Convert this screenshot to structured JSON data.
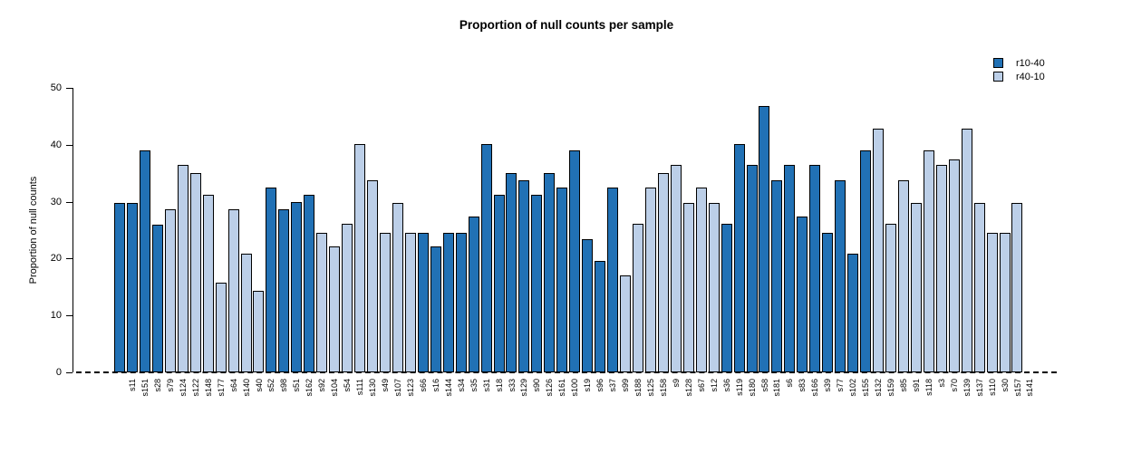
{
  "title": "Proportion of null counts per sample",
  "chart_data": {
    "type": "bar",
    "title": "Proportion of null counts per sample",
    "xlabel": "",
    "ylabel": "Proportion of null counts",
    "ylim": [
      0,
      50
    ],
    "yticks": [
      0,
      10,
      20,
      30,
      40,
      50
    ],
    "zero_line_style": "dashed",
    "legend_position": "top-right",
    "grid": false,
    "legend": [
      {
        "name": "r10-40",
        "color": "#2171B5"
      },
      {
        "name": "r40-10",
        "color": "#BCCFE8"
      }
    ],
    "samples": [
      {
        "label": "s11",
        "value": 29.8,
        "series": "r10-40"
      },
      {
        "label": "s151",
        "value": 29.8,
        "series": "r10-40"
      },
      {
        "label": "s28",
        "value": 39.0,
        "series": "r10-40"
      },
      {
        "label": "s79",
        "value": 26.0,
        "series": "r10-40"
      },
      {
        "label": "s124",
        "value": 28.6,
        "series": "r40-10"
      },
      {
        "label": "s122",
        "value": 36.4,
        "series": "r40-10"
      },
      {
        "label": "s148",
        "value": 35.0,
        "series": "r40-10"
      },
      {
        "label": "s177",
        "value": 31.2,
        "series": "r40-10"
      },
      {
        "label": "s64",
        "value": 15.7,
        "series": "r40-10"
      },
      {
        "label": "s140",
        "value": 28.6,
        "series": "r40-10"
      },
      {
        "label": "s40",
        "value": 20.8,
        "series": "r40-10"
      },
      {
        "label": "s52",
        "value": 14.4,
        "series": "r40-10"
      },
      {
        "label": "s98",
        "value": 32.5,
        "series": "r10-40"
      },
      {
        "label": "s51",
        "value": 28.6,
        "series": "r10-40"
      },
      {
        "label": "s162",
        "value": 30.0,
        "series": "r10-40"
      },
      {
        "label": "s92",
        "value": 31.2,
        "series": "r10-40"
      },
      {
        "label": "s104",
        "value": 24.6,
        "series": "r40-10"
      },
      {
        "label": "s54",
        "value": 22.1,
        "series": "r40-10"
      },
      {
        "label": "s111",
        "value": 26.1,
        "series": "r40-10"
      },
      {
        "label": "s130",
        "value": 40.2,
        "series": "r40-10"
      },
      {
        "label": "s49",
        "value": 33.8,
        "series": "r40-10"
      },
      {
        "label": "s107",
        "value": 24.6,
        "series": "r40-10"
      },
      {
        "label": "s123",
        "value": 29.8,
        "series": "r40-10"
      },
      {
        "label": "s66",
        "value": 24.6,
        "series": "r40-10"
      },
      {
        "label": "s16",
        "value": 24.6,
        "series": "r10-40"
      },
      {
        "label": "s144",
        "value": 22.1,
        "series": "r10-40"
      },
      {
        "label": "s34",
        "value": 24.6,
        "series": "r10-40"
      },
      {
        "label": "s35",
        "value": 24.6,
        "series": "r10-40"
      },
      {
        "label": "s31",
        "value": 27.4,
        "series": "r10-40"
      },
      {
        "label": "s18",
        "value": 40.2,
        "series": "r10-40"
      },
      {
        "label": "s33",
        "value": 31.2,
        "series": "r10-40"
      },
      {
        "label": "s129",
        "value": 35.0,
        "series": "r10-40"
      },
      {
        "label": "s90",
        "value": 33.8,
        "series": "r10-40"
      },
      {
        "label": "s126",
        "value": 31.2,
        "series": "r10-40"
      },
      {
        "label": "s161",
        "value": 35.0,
        "series": "r10-40"
      },
      {
        "label": "s100",
        "value": 32.5,
        "series": "r10-40"
      },
      {
        "label": "s19",
        "value": 39.0,
        "series": "r10-40"
      },
      {
        "label": "s96",
        "value": 23.4,
        "series": "r10-40"
      },
      {
        "label": "s37",
        "value": 19.6,
        "series": "r10-40"
      },
      {
        "label": "s99",
        "value": 32.5,
        "series": "r10-40"
      },
      {
        "label": "s188",
        "value": 17.0,
        "series": "r40-10"
      },
      {
        "label": "s125",
        "value": 26.1,
        "series": "r40-10"
      },
      {
        "label": "s158",
        "value": 32.5,
        "series": "r40-10"
      },
      {
        "label": "s9",
        "value": 35.0,
        "series": "r40-10"
      },
      {
        "label": "s128",
        "value": 36.4,
        "series": "r40-10"
      },
      {
        "label": "s67",
        "value": 29.8,
        "series": "r40-10"
      },
      {
        "label": "s12",
        "value": 32.5,
        "series": "r40-10"
      },
      {
        "label": "s36",
        "value": 29.8,
        "series": "r40-10"
      },
      {
        "label": "s119",
        "value": 26.1,
        "series": "r10-40"
      },
      {
        "label": "s180",
        "value": 40.2,
        "series": "r10-40"
      },
      {
        "label": "s58",
        "value": 36.4,
        "series": "r10-40"
      },
      {
        "label": "s181",
        "value": 46.8,
        "series": "r10-40"
      },
      {
        "label": "s6",
        "value": 33.8,
        "series": "r10-40"
      },
      {
        "label": "s83",
        "value": 36.4,
        "series": "r10-40"
      },
      {
        "label": "s166",
        "value": 27.4,
        "series": "r10-40"
      },
      {
        "label": "s39",
        "value": 36.4,
        "series": "r10-40"
      },
      {
        "label": "s77",
        "value": 24.6,
        "series": "r10-40"
      },
      {
        "label": "s102",
        "value": 33.8,
        "series": "r10-40"
      },
      {
        "label": "s155",
        "value": 20.8,
        "series": "r10-40"
      },
      {
        "label": "s132",
        "value": 39.0,
        "series": "r10-40"
      },
      {
        "label": "s159",
        "value": 42.8,
        "series": "r40-10"
      },
      {
        "label": "s85",
        "value": 26.1,
        "series": "r40-10"
      },
      {
        "label": "s91",
        "value": 33.8,
        "series": "r40-10"
      },
      {
        "label": "s118",
        "value": 29.8,
        "series": "r40-10"
      },
      {
        "label": "s3",
        "value": 39.0,
        "series": "r40-10"
      },
      {
        "label": "s70",
        "value": 36.4,
        "series": "r40-10"
      },
      {
        "label": "s139",
        "value": 37.5,
        "series": "r40-10"
      },
      {
        "label": "s137",
        "value": 42.8,
        "series": "r40-10"
      },
      {
        "label": "s110",
        "value": 29.8,
        "series": "r40-10"
      },
      {
        "label": "s30",
        "value": 24.6,
        "series": "r40-10"
      },
      {
        "label": "s157",
        "value": 24.6,
        "series": "r40-10"
      },
      {
        "label": "s141",
        "value": 29.8,
        "series": "r40-10"
      }
    ]
  }
}
